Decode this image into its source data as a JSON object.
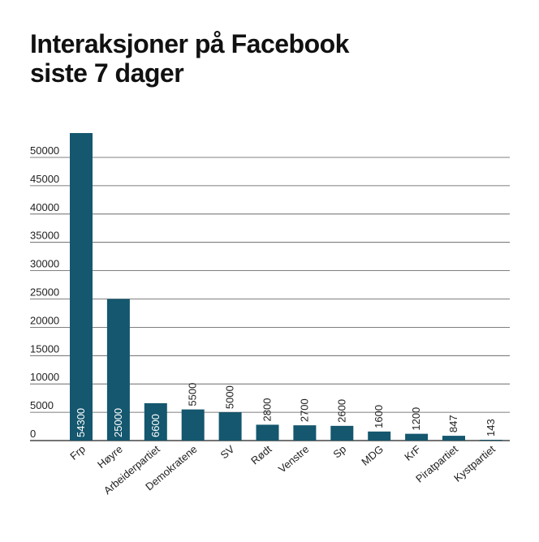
{
  "chart_data": {
    "type": "bar",
    "title_line1": "Interaksjoner på Facebook",
    "title_line2": "siste 7 dager",
    "xlabel": "",
    "ylabel": "",
    "ylim": [
      0,
      50000
    ],
    "yticks": [
      "0",
      "5000",
      "10000",
      "15000",
      "20000",
      "25000",
      "30000",
      "35000",
      "40000",
      "45000",
      "50000"
    ],
    "categories": [
      "Frp",
      "Høyre",
      "Arbeiderpartiet",
      "Demokratene",
      "SV",
      "Rødt",
      "Venstre",
      "Sp",
      "MDG",
      "KrF",
      "Piratpartiet",
      "Kystpartiet"
    ],
    "values": [
      54300,
      25000,
      6600,
      5500,
      5000,
      2800,
      2700,
      2600,
      1600,
      1200,
      847,
      143
    ],
    "value_labels": [
      "54300",
      "25000",
      "6600",
      "5500",
      "5000",
      "2800",
      "2700",
      "2600",
      "1600",
      "1200",
      "847",
      "143"
    ],
    "bar_color": "#14576e",
    "grid": true
  }
}
